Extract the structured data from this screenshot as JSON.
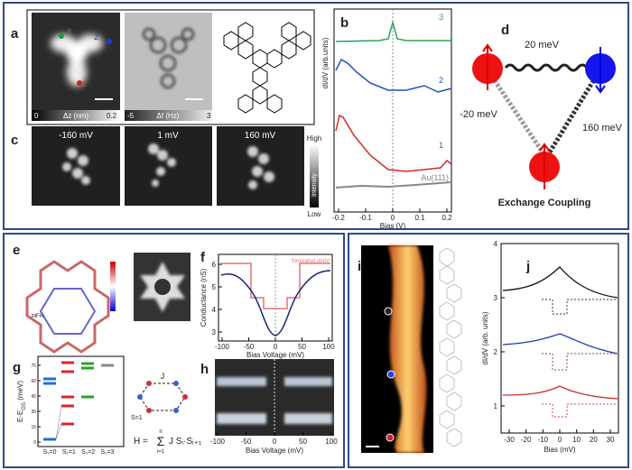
{
  "panel_a": {
    "label": "a",
    "sites": [
      "1",
      "2",
      "3"
    ],
    "colorbar_stm": {
      "min": "0",
      "title": "Δz (nm)",
      "max": "0.2"
    },
    "colorbar_afm": {
      "min": "-5",
      "title": "Δf (Hz)",
      "max": "3"
    }
  },
  "panel_b": {
    "label": "b",
    "y_label": "dI/dV (arb.units)",
    "x_label": "Bias (V)",
    "x_ticks": [
      "-0.2",
      "-0.1",
      "0",
      "0.1",
      "0.2"
    ],
    "curves": [
      "3",
      "2",
      "1",
      "Au(111)"
    ]
  },
  "panel_c": {
    "label": "c",
    "images": [
      "-160 mV",
      "1 mV",
      "160 mV"
    ],
    "colorbar": {
      "high": "High",
      "title": "Intensity",
      "low": "Low"
    }
  },
  "panel_d": {
    "label": "d",
    "couplings": [
      "20 meV",
      "-20 meV",
      "160 meV"
    ],
    "caption": "Exchange Coupling"
  },
  "panel_e": {
    "label": "e",
    "model": "MFH"
  },
  "panel_f": {
    "label": "f",
    "legend": "Simulated dI/dV",
    "y_label": "Conductance (nS)",
    "y_ticks": [
      "6",
      "5",
      "4",
      "3"
    ],
    "x_label": "Bias Voltage (mV)",
    "x_ticks": [
      "-100",
      "-50",
      "0",
      "50",
      "100"
    ]
  },
  "panel_g": {
    "label": "g",
    "y_label": {
      "main": "E-E",
      "sub": "GS",
      "unit": " (meV)"
    },
    "y_ticks": [
      "0",
      "15",
      "30",
      "45",
      "60",
      "75"
    ],
    "x_ticks": [
      "S₁=0",
      "S₁=1",
      "S₁=2",
      "S₁=3"
    ],
    "diagram": {
      "coupling": "J",
      "spin": "S=1"
    },
    "formula": {
      "lhs": "H =",
      "sum": "Σ",
      "term": "J Sᵢ·Sᵢ₊₁",
      "upper": "n",
      "lower": "i=1"
    }
  },
  "panel_h": {
    "label": "h",
    "x_label": "Bias Voltage (mV)",
    "x_ticks": [
      "-100",
      "-50",
      "0",
      "50",
      "100"
    ]
  },
  "panel_i": {
    "label": "i"
  },
  "panel_j": {
    "label": "j",
    "y_label": "dI/dV (arb. units)",
    "y_ticks": [
      "1",
      "2",
      "3",
      "4"
    ],
    "x_label": "Bias (mV)",
    "x_ticks": [
      "-30",
      "-20",
      "-10",
      "0",
      "10",
      "20",
      "30"
    ]
  }
}
